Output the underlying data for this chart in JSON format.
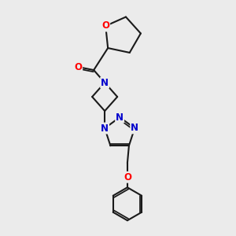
{
  "bg_color": "#ebebeb",
  "bond_color": "#1a1a1a",
  "bond_width": 1.5,
  "atom_colors": {
    "O": "#ff0000",
    "N": "#0000cc",
    "C": "#1a1a1a"
  },
  "font_size_atoms": 8.5,
  "fig_size": [
    3.0,
    3.0
  ],
  "dpi": 100
}
